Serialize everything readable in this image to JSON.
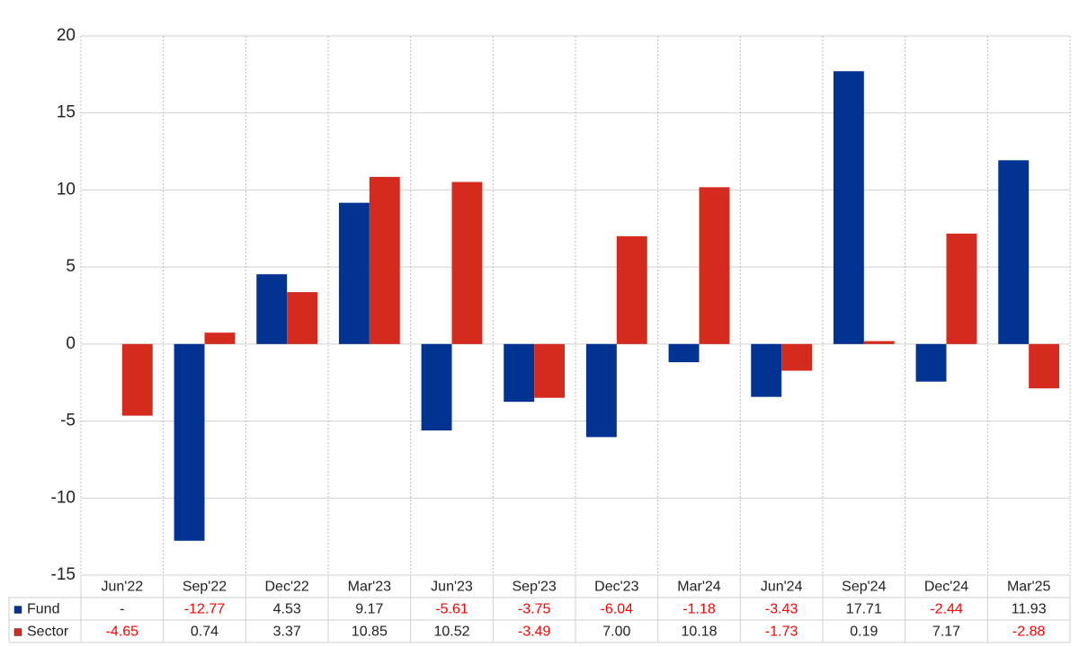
{
  "chart_data": {
    "type": "bar",
    "categories": [
      "Jun'22",
      "Sep'22",
      "Dec'22",
      "Mar'23",
      "Jun'23",
      "Sep'23",
      "Dec'23",
      "Mar'24",
      "Jun'24",
      "Sep'24",
      "Dec'24",
      "Mar'25"
    ],
    "series": [
      {
        "name": "Fund",
        "color": "#003392",
        "values": [
          null,
          -12.77,
          4.53,
          9.17,
          -5.61,
          -3.75,
          -6.04,
          -1.18,
          -3.43,
          17.71,
          -2.44,
          11.93
        ],
        "value_labels": [
          "-",
          "-12.77",
          "4.53",
          "9.17",
          "-5.61",
          "-3.75",
          "-6.04",
          "-1.18",
          "-3.43",
          "17.71",
          "-2.44",
          "11.93"
        ]
      },
      {
        "name": "Sector",
        "color": "#d52b1e",
        "values": [
          -4.65,
          0.74,
          3.37,
          10.85,
          10.52,
          -3.49,
          7.0,
          10.18,
          -1.73,
          0.19,
          7.17,
          -2.88
        ],
        "value_labels": [
          "-4.65",
          "0.74",
          "3.37",
          "10.85",
          "10.52",
          "-3.49",
          "7.00",
          "10.18",
          "-1.73",
          "0.19",
          "7.17",
          "-2.88"
        ]
      }
    ],
    "ylim": [
      -15,
      20
    ],
    "yticks": [
      -15,
      -10,
      -5,
      0,
      5,
      10,
      15,
      20
    ],
    "grid": true,
    "negative_label_color": "#ff0000"
  }
}
